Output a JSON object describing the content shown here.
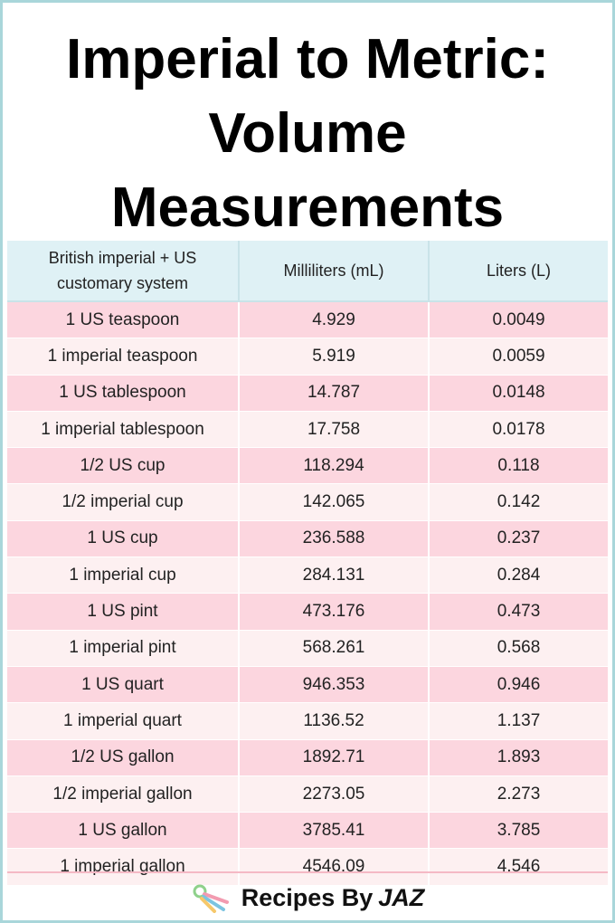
{
  "header": {
    "title_lines": [
      "Imperial to Metric:",
      "Volume",
      "Measurements"
    ]
  },
  "table": {
    "columns": [
      "British imperial + US customary system",
      "Milliliters (mL)",
      "Liters (L)"
    ],
    "rows": [
      [
        "1 US teaspoon",
        "4.929",
        "0.0049"
      ],
      [
        "1 imperial teaspoon",
        "5.919",
        "0.0059"
      ],
      [
        "1 US tablespoon",
        "14.787",
        "0.0148"
      ],
      [
        "1 imperial tablespoon",
        "17.758",
        "0.0178"
      ],
      [
        "1/2 US cup",
        "118.294",
        "0.118"
      ],
      [
        "1/2 imperial cup",
        "142.065",
        "0.142"
      ],
      [
        "1 US cup",
        "236.588",
        "0.237"
      ],
      [
        "1 imperial cup",
        "284.131",
        "0.284"
      ],
      [
        "1 US pint",
        "473.176",
        "0.473"
      ],
      [
        "1 imperial pint",
        "568.261",
        "0.568"
      ],
      [
        "1 US quart",
        "946.353",
        "0.946"
      ],
      [
        "1 imperial quart",
        "1136.52",
        "1.137"
      ],
      [
        "1/2 US gallon",
        "1892.71",
        "1.893"
      ],
      [
        "1/2 imperial gallon",
        "2273.05",
        "2.273"
      ],
      [
        "1 US gallon",
        "3785.41",
        "3.785"
      ],
      [
        "1 imperial gallon",
        "4546.09",
        "4.546"
      ]
    ]
  },
  "footer": {
    "brand": "Recipes By",
    "brand_accent": "JAZ"
  }
}
